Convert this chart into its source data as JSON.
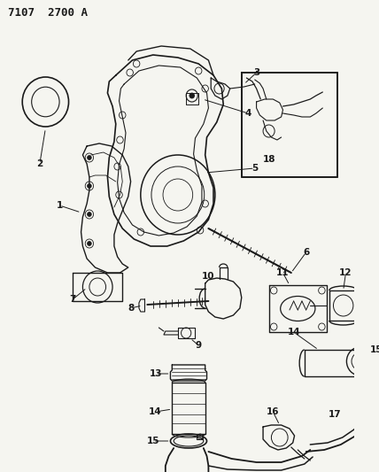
{
  "title": "7107  2700 A",
  "bg_color": "#f5f5f0",
  "fg_color": "#1a1a1a",
  "fig_width": 4.28,
  "fig_height": 5.33,
  "dpi": 100
}
